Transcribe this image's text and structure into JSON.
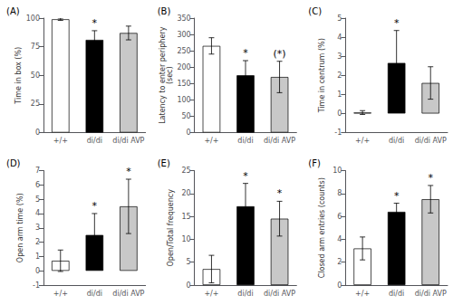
{
  "chart_data": [
    {
      "type": "bar",
      "title": "(A)",
      "ylabel": "Time in box (%)",
      "categories": [
        "+/+",
        "di/di",
        "di/di AVP"
      ],
      "values": [
        99.0,
        81.0,
        87.0
      ],
      "errors": [
        1.0,
        8.0,
        6.0
      ],
      "colors": [
        "white",
        "black",
        "#c8c8c8"
      ],
      "annotations": [
        null,
        "*",
        null
      ],
      "ylim": [
        0,
        100
      ],
      "yticks": [
        0,
        25,
        50,
        75,
        100
      ],
      "grid": false
    },
    {
      "type": "bar",
      "title": "(B)",
      "ylabel": "Latency to enter periphery\n(sec)",
      "categories": [
        "+/+",
        "di/di",
        "di/di AVP"
      ],
      "values": [
        265,
        175,
        170
      ],
      "errors": [
        25,
        45,
        48
      ],
      "colors": [
        "white",
        "black",
        "#c8c8c8"
      ],
      "annotations": [
        null,
        "*",
        "(*)"
      ],
      "ylim": [
        0,
        350
      ],
      "yticks": [
        0,
        50,
        100,
        150,
        200,
        250,
        300,
        350
      ],
      "grid": false
    },
    {
      "type": "bar",
      "title": "(C)",
      "ylabel": "Time in centrum (%)",
      "categories": [
        "+/+",
        "di/di",
        "di/di AVP"
      ],
      "values": [
        0.05,
        2.65,
        1.6
      ],
      "errors": [
        0.1,
        1.7,
        0.85
      ],
      "colors": [
        "white",
        "black",
        "#c8c8c8"
      ],
      "annotations": [
        null,
        "*",
        null
      ],
      "ylim": [
        -1,
        5
      ],
      "yticks": [
        -1,
        0,
        1,
        2,
        3,
        4,
        5
      ],
      "grid": false
    },
    {
      "type": "bar",
      "title": "(D)",
      "ylabel": "Open arm time (%)",
      "categories": [
        "+/+",
        "di/di",
        "di/di AVP"
      ],
      "values": [
        0.7,
        2.5,
        4.5
      ],
      "errors": [
        0.75,
        1.5,
        1.9
      ],
      "colors": [
        "white",
        "black",
        "#c8c8c8"
      ],
      "annotations": [
        null,
        "*",
        "*"
      ],
      "ylim": [
        -1,
        7
      ],
      "yticks": [
        -1,
        0,
        1,
        2,
        3,
        4,
        5,
        6,
        7
      ],
      "grid": false
    },
    {
      "type": "bar",
      "title": "(E)",
      "ylabel": "Open/Total frequency",
      "categories": [
        "+/+",
        "di/di",
        "di/di AVP"
      ],
      "values": [
        3.5,
        17.2,
        14.5
      ],
      "errors": [
        3.0,
        5.0,
        3.8
      ],
      "colors": [
        "white",
        "black",
        "#c8c8c8"
      ],
      "annotations": [
        null,
        "*",
        "*"
      ],
      "ylim": [
        0,
        25
      ],
      "yticks": [
        0,
        5,
        10,
        15,
        20,
        25
      ],
      "grid": false
    },
    {
      "type": "bar",
      "title": "(F)",
      "ylabel": "Closed arm entries (counts)",
      "categories": [
        "+/+",
        "di/di",
        "di/di AVP"
      ],
      "values": [
        3.2,
        6.4,
        7.5
      ],
      "errors": [
        1.0,
        0.75,
        1.2
      ],
      "colors": [
        "white",
        "black",
        "#c8c8c8"
      ],
      "annotations": [
        null,
        "*",
        "*"
      ],
      "ylim": [
        0,
        10
      ],
      "yticks": [
        0,
        2,
        4,
        6,
        8,
        10
      ],
      "grid": false
    }
  ]
}
